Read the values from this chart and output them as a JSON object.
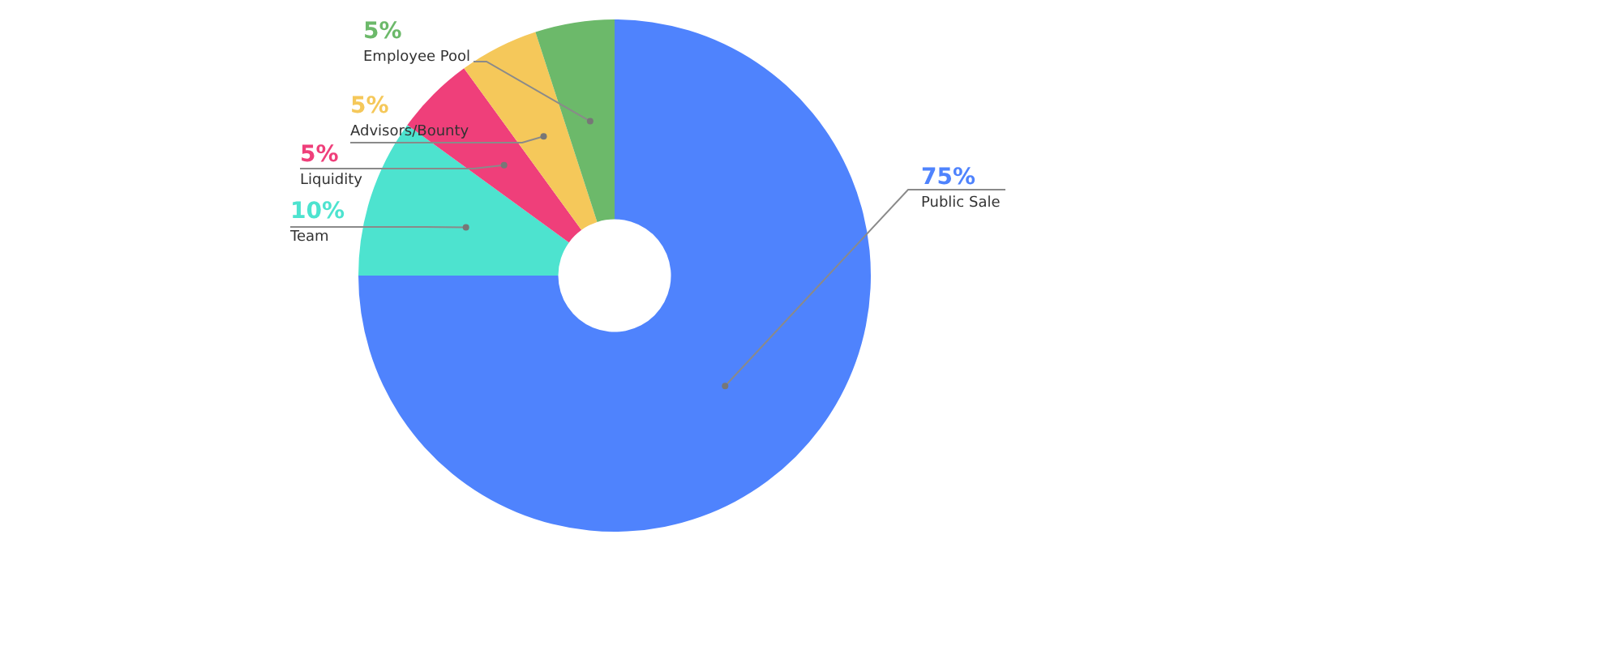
{
  "chart_data": {
    "type": "donut",
    "categories": [
      "Public Sale",
      "Team",
      "Liquidity",
      "Advisors/Bounty",
      "Employee Pool"
    ],
    "values": [
      75,
      10,
      5,
      5,
      5
    ],
    "value_labels": [
      "75%",
      "10%",
      "5%",
      "5%",
      "5%"
    ],
    "colors": [
      "#4f83fd",
      "#4de3cf",
      "#ef3f7a",
      "#f5c85a",
      "#6cb96a"
    ],
    "legend": false
  }
}
